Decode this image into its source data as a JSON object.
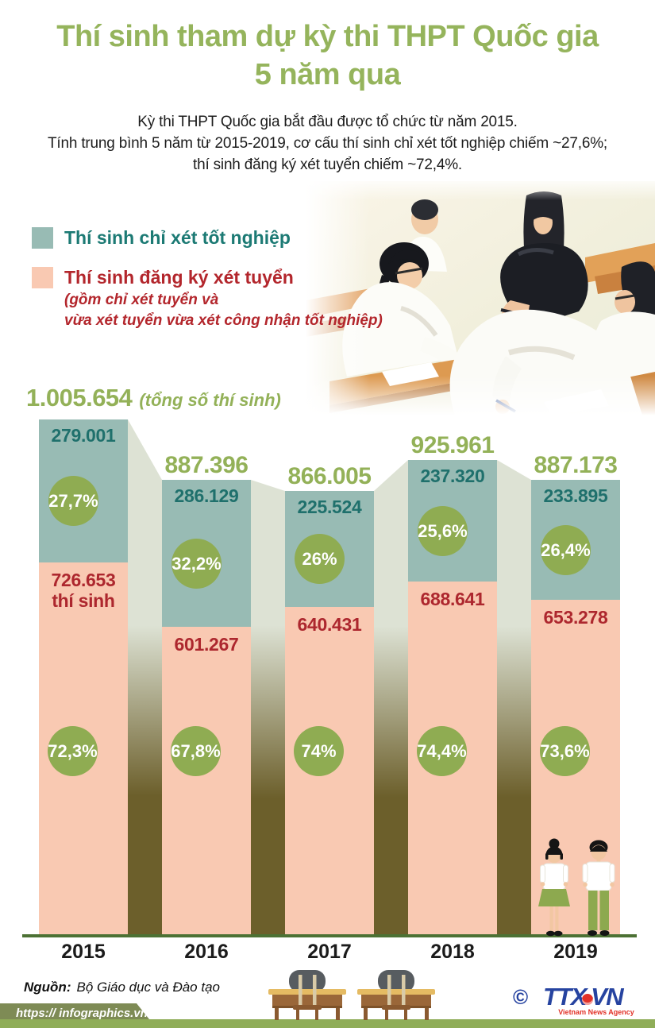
{
  "title": {
    "line1": "Thí sinh tham dự kỳ thi THPT Quốc gia",
    "line2": "5 năm qua"
  },
  "subtitle": {
    "line1": "Kỳ thi THPT Quốc gia bắt đầu được tổ chức từ năm 2015.",
    "line2": "Tính trung bình 5 năm từ 2015-2019, cơ cấu thí sinh chỉ xét tốt nghiệp chiếm ~27,6%;",
    "line3": "thí sinh đăng ký xét tuyển chiếm ~72,4%."
  },
  "legend": {
    "graduation_label": "Thí sinh chỉ xét tốt nghiệp",
    "admission_label": "Thí sinh đăng ký xét tuyển",
    "admission_note_line1": "(gồm chỉ xét tuyển và",
    "admission_note_line2": "vừa xét tuyển vừa xét công nhận tốt nghiệp)"
  },
  "chart_data": {
    "type": "bar",
    "title": "Thí sinh tham dự kỳ thi THPT Quốc gia 5 năm qua",
    "categories": [
      "2015",
      "2016",
      "2017",
      "2018",
      "2019"
    ],
    "totals": [
      1005654,
      887396,
      866005,
      925961,
      887173
    ],
    "total_labels": [
      "1.005.654",
      "887.396",
      "866.005",
      "925.961",
      "887.173"
    ],
    "first_bar_total_suffix": "(tổng số thí sinh)",
    "first_bar_bottom_suffix": "thí sinh",
    "series": [
      {
        "name": "Thí sinh chỉ xét tốt nghiệp",
        "values": [
          279001,
          286129,
          225524,
          237320,
          233895
        ],
        "percent_labels": [
          "27,7%",
          "32,2%",
          "26%",
          "25,6%",
          "26,4%"
        ]
      },
      {
        "name": "Thí sinh đăng ký xét tuyển",
        "values": [
          726653,
          601267,
          640431,
          688641,
          653278
        ],
        "percent_labels": [
          "72,3%",
          "67,8%",
          "74%",
          "74,4%",
          "73,6%"
        ]
      }
    ],
    "top_value_labels": [
      "279.001",
      "286.129",
      "225.524",
      "237.320",
      "233.895"
    ],
    "bottom_value_labels": [
      "726.653",
      "601.267",
      "640.431",
      "688.641",
      "653.278"
    ],
    "legend_position": "top-left",
    "grid": false
  },
  "colors": {
    "accent_green": "#93b158",
    "circle_green": "#8fac52",
    "teal_fill": "#98bbb4",
    "teal_text": "#1f706c",
    "pink_fill": "#f9c9b2",
    "red_text": "#ad272e",
    "gap_light": "#dde2d4",
    "gap_dark": "#6c5f2b",
    "baseline_green": "#4c7134",
    "strip_green": "#8fad58",
    "ribbon_olive": "#7e8b55",
    "logo_blue": "#2643a0",
    "logo_red": "#e23127"
  },
  "footer": {
    "source_label": "Nguồn:",
    "source_text": "Bộ Giáo dục và Đào tạo",
    "url": "https:// infographics.vn",
    "copyright": "©",
    "logo_text_left": "TTX",
    "logo_text_right": "VN",
    "logo_sub": "Vietnam News Agency"
  }
}
